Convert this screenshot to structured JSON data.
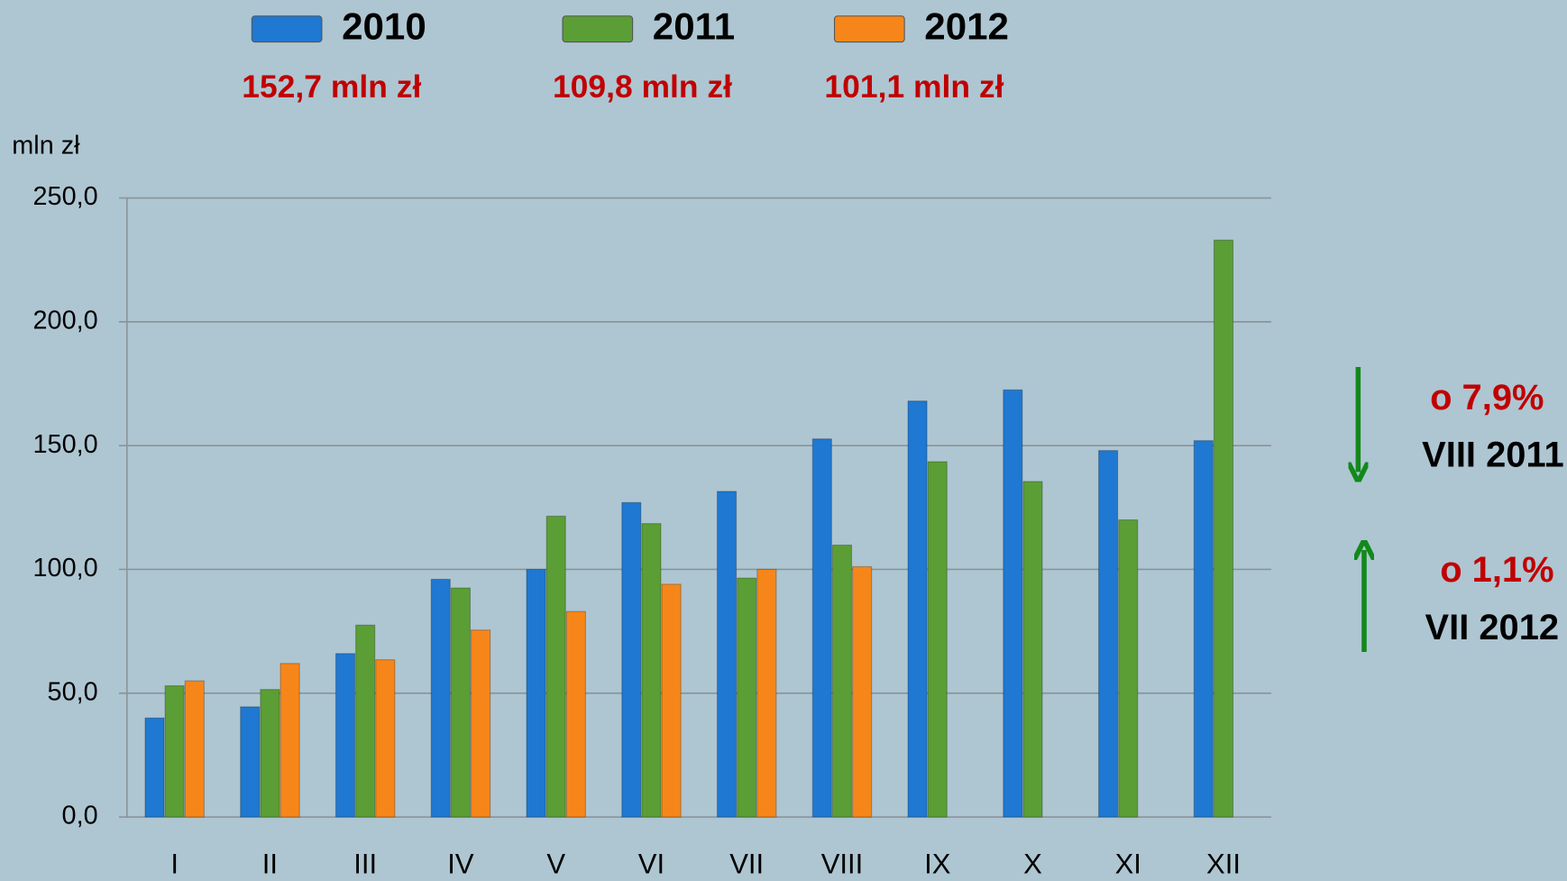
{
  "chart_data": {
    "type": "bar",
    "y_label": "mln zł",
    "categories": [
      "I",
      "II",
      "III",
      "IV",
      "V",
      "VI",
      "VII",
      "VIII",
      "IX",
      "X",
      "XI",
      "XII"
    ],
    "series": [
      {
        "name": "2010",
        "color": "#1f78d1",
        "total_label": "152,7 mln zł",
        "values": [
          40,
          44.5,
          66,
          96,
          100,
          127,
          131.5,
          152.7,
          168,
          172.5,
          148,
          152
        ]
      },
      {
        "name": "2011",
        "color": "#5a9e35",
        "total_label": "109,8 mln zł",
        "values": [
          53,
          51.5,
          77.5,
          92.5,
          121.5,
          118.5,
          96.5,
          109.8,
          143.5,
          135.5,
          120,
          233
        ]
      },
      {
        "name": "2012",
        "color": "#f7861a",
        "total_label": "101,1 mln zł",
        "values": [
          55,
          62,
          63.5,
          75.5,
          83,
          94,
          100,
          101.1,
          null,
          null,
          null,
          null
        ]
      }
    ],
    "ylim": [
      0,
      250
    ],
    "yticks": [
      {
        "value": 0,
        "label": "0,0"
      },
      {
        "value": 50,
        "label": "50,0"
      },
      {
        "value": 100,
        "label": "100,0"
      },
      {
        "value": 150,
        "label": "150,0"
      },
      {
        "value": 200,
        "label": "200,0"
      },
      {
        "value": 250,
        "label": "250,0"
      }
    ],
    "grid": true,
    "annotations": [
      {
        "text": "o 7,9%",
        "color": "#c00000"
      },
      {
        "text": "VIII 2011",
        "color": "#000000"
      },
      {
        "text": "o 1,1%",
        "color": "#c00000"
      },
      {
        "text": "VII 2012",
        "color": "#000000"
      }
    ]
  }
}
